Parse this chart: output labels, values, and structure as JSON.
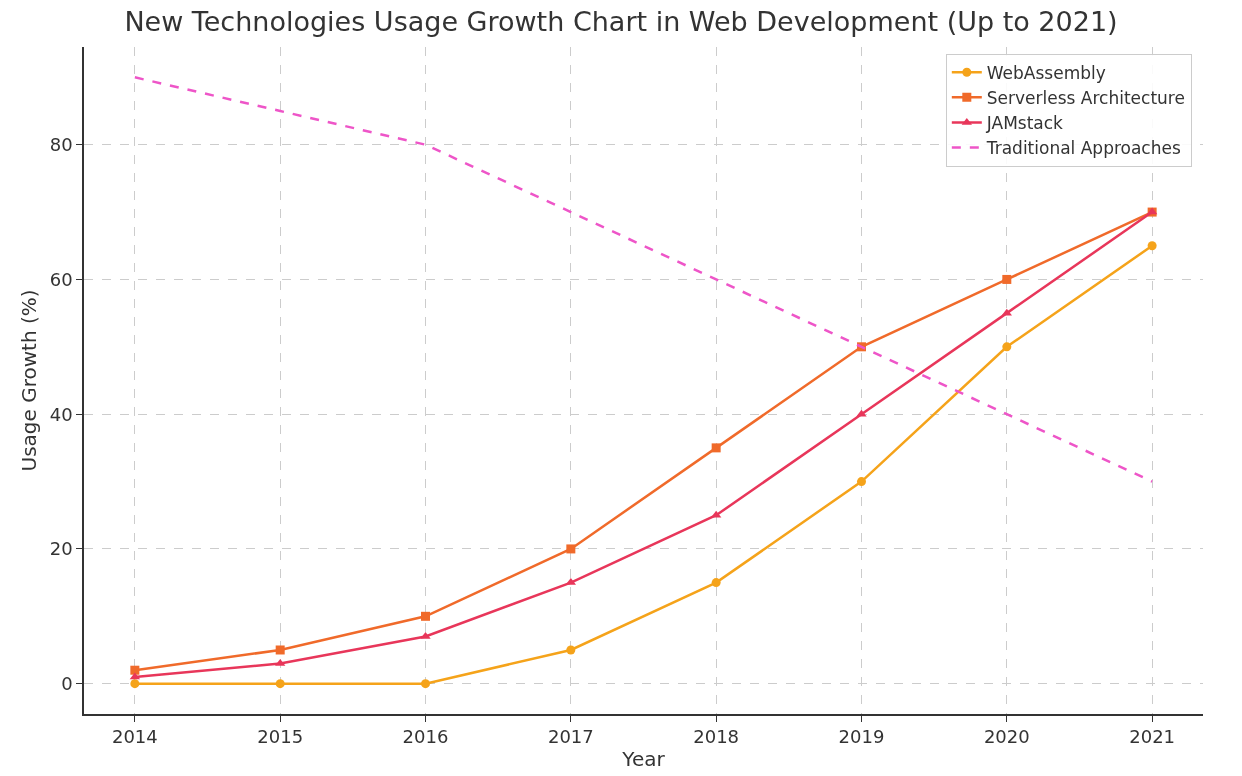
{
  "chart_data": {
    "type": "line",
    "title": "New Technologies Usage Growth Chart in Web Development (Up to 2021)",
    "xlabel": "Year",
    "ylabel": "Usage Growth (%)",
    "x": [
      2014,
      2015,
      2016,
      2017,
      2018,
      2019,
      2020,
      2021
    ],
    "series": [
      {
        "name": "WebAssembly",
        "color": "#f5a31a",
        "marker": "circle",
        "line_style": "solid",
        "values": [
          0,
          0,
          0,
          5,
          15,
          30,
          50,
          65
        ]
      },
      {
        "name": "Serverless Architecture",
        "color": "#f06a2a",
        "marker": "square",
        "line_style": "solid",
        "values": [
          2,
          5,
          10,
          20,
          35,
          50,
          60,
          70
        ]
      },
      {
        "name": "JAMstack",
        "color": "#e8365a",
        "marker": "triangle",
        "line_style": "solid",
        "values": [
          1,
          3,
          7,
          15,
          25,
          40,
          55,
          70
        ]
      },
      {
        "name": "Traditional Approaches",
        "color": "#ee55c8",
        "marker": "none",
        "line_style": "dashed",
        "values": [
          90,
          85,
          80,
          70,
          60,
          50,
          40,
          30
        ]
      }
    ],
    "xlim": [
      2013.65,
      2021.35
    ],
    "ylim": [
      -4.5,
      94.5
    ],
    "xticks": [
      2014,
      2015,
      2016,
      2017,
      2018,
      2019,
      2020,
      2021
    ],
    "yticks": [
      0,
      20,
      40,
      60,
      80
    ],
    "grid": true,
    "legend": "top right"
  }
}
